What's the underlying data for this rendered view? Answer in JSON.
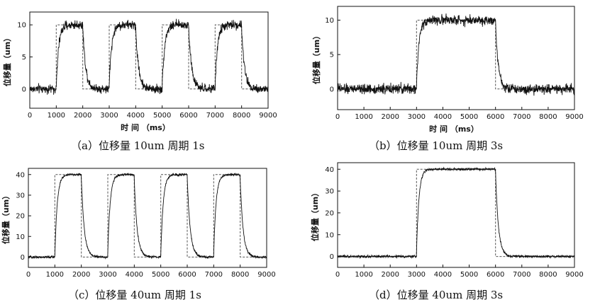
{
  "colors": {
    "signal": "#111111",
    "reference": "#555555",
    "axis": "#111111",
    "background": "#ffffff"
  },
  "chart_data": [
    {
      "id": "a",
      "type": "line",
      "caption": "（a）位移量 10um  周期 1s",
      "xlabel": "时 间 （ms）",
      "ylabel": "位移量（um）",
      "xlim": [
        0,
        9000
      ],
      "ylim": [
        -3,
        12
      ],
      "xticks": [
        0,
        1000,
        2000,
        3000,
        4000,
        5000,
        6000,
        7000,
        8000,
        9000
      ],
      "yticks": [
        0,
        5,
        10
      ],
      "amplitude": 10,
      "noise": 1.2,
      "reference": {
        "name": "",
        "style": "dashed",
        "x": [
          0,
          1000,
          1000,
          2000,
          2000,
          3000,
          3000,
          4000,
          4000,
          5000,
          5000,
          6000,
          6000,
          7000,
          7000,
          8000,
          8000,
          9000
        ],
        "y": [
          0,
          0,
          10,
          10,
          0,
          0,
          10,
          10,
          0,
          0,
          10,
          10,
          0,
          0,
          10,
          10,
          0,
          0
        ]
      },
      "high_intervals": [
        [
          1000,
          2000
        ],
        [
          3000,
          4000
        ],
        [
          5000,
          6000
        ],
        [
          7000,
          8000
        ]
      ]
    },
    {
      "id": "b",
      "type": "line",
      "caption": "（b）位移量 10um  周期 3s",
      "xlabel": "时 间 （ms）",
      "ylabel": "位移量（um）",
      "xlim": [
        0,
        9000
      ],
      "ylim": [
        -3,
        12
      ],
      "xticks": [
        0,
        1000,
        2000,
        3000,
        4000,
        5000,
        6000,
        7000,
        8000,
        9000
      ],
      "yticks": [
        0,
        5,
        10
      ],
      "amplitude": 10,
      "noise": 1.2,
      "reference": {
        "name": "",
        "style": "dashed",
        "x": [
          0,
          3000,
          3000,
          6000,
          6000,
          9000
        ],
        "y": [
          0,
          0,
          10,
          10,
          0,
          0
        ]
      },
      "high_intervals": [
        [
          3000,
          6000
        ]
      ]
    },
    {
      "id": "c",
      "type": "line",
      "caption": "（c）位移量 40um  周期 1s",
      "xlabel": "",
      "ylabel": "位移量（um）",
      "xlim": [
        0,
        9000
      ],
      "ylim": [
        -5,
        43
      ],
      "xticks": [
        0,
        1000,
        2000,
        3000,
        4000,
        5000,
        6000,
        7000,
        8000,
        9000
      ],
      "yticks": [
        0,
        10,
        20,
        30,
        40
      ],
      "amplitude": 40,
      "noise": 1.0,
      "reference": {
        "name": "",
        "style": "dashed",
        "x": [
          0,
          1000,
          1000,
          2000,
          2000,
          3000,
          3000,
          4000,
          4000,
          5000,
          5000,
          6000,
          6000,
          7000,
          7000,
          8000,
          8000,
          9000
        ],
        "y": [
          0,
          0,
          40,
          40,
          0,
          0,
          40,
          40,
          0,
          0,
          40,
          40,
          0,
          0,
          40,
          40,
          0,
          0
        ]
      },
      "high_intervals": [
        [
          1000,
          2000
        ],
        [
          3000,
          4000
        ],
        [
          5000,
          6000
        ],
        [
          7000,
          8000
        ]
      ]
    },
    {
      "id": "d",
      "type": "line",
      "caption": "（d）位移量 40um  周期 3s",
      "xlabel": "",
      "ylabel": "位移量（um）",
      "xlim": [
        0,
        9000
      ],
      "ylim": [
        -5,
        43
      ],
      "xticks": [
        0,
        1000,
        2000,
        3000,
        4000,
        5000,
        6000,
        7000,
        8000,
        9000
      ],
      "yticks": [
        0,
        10,
        20,
        30,
        40
      ],
      "amplitude": 40,
      "noise": 1.0,
      "reference": {
        "name": "",
        "style": "dashed",
        "x": [
          0,
          3000,
          3000,
          6000,
          6000,
          9000
        ],
        "y": [
          0,
          0,
          40,
          40,
          0,
          0
        ]
      },
      "high_intervals": [
        [
          3000,
          6000
        ]
      ]
    }
  ]
}
